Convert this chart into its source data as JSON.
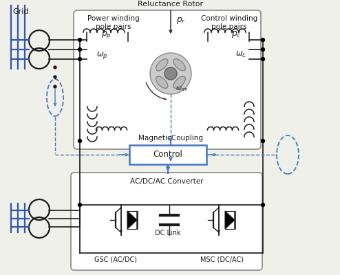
{
  "bg_color": "#f0f0eb",
  "line_color": "#1a1a1a",
  "blue_color": "#4477bb",
  "text_color": "#1a1a1a",
  "grid_label": "Grid",
  "reluctance_rotor_label": "Reluctance Rotor",
  "power_winding_label": "Power winding\npole pairs",
  "control_winding_label": "Control winding\npole pairs",
  "magnetic_coupling_label": "MagneticCoupling",
  "control_label": "Control",
  "converter_label": "AC/DC/AC Converter",
  "dc_link_label": "DC Link",
  "gsc_label": "GSC (AC/DC)",
  "msc_label": "MSC (DC/AC)"
}
